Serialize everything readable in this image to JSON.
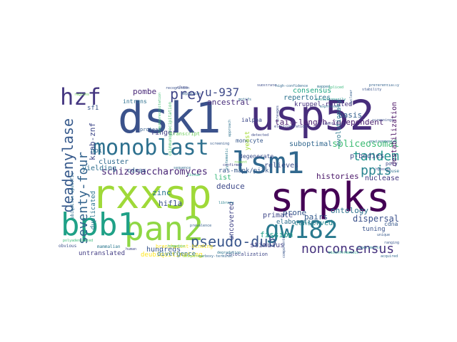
{
  "words": [
    {
      "text": "rxxsp",
      "color": "#9fd938"
    },
    {
      "text": "dsk1",
      "color": "#3b528b"
    },
    {
      "text": "usp52",
      "color": "#472d7b"
    },
    {
      "text": "srpks",
      "color": "#440154"
    },
    {
      "text": "pan2",
      "color": "#8fd744"
    },
    {
      "text": "bpb1",
      "color": "#1fa187"
    },
    {
      "text": "lsm1",
      "color": "#31688e"
    },
    {
      "text": "gw182",
      "color": "#29798e"
    },
    {
      "text": "hzf",
      "color": "#453781"
    },
    {
      "text": "monoblast",
      "color": "#2d708e"
    },
    {
      "text": "pseudo-dub",
      "color": "#39568c"
    },
    {
      "text": "nonconsensus",
      "color": "#46327e"
    },
    {
      "text": "deadenylase",
      "color": "#375a8c"
    },
    {
      "text": "seventy-four",
      "color": "#33638d"
    },
    {
      "text": "prey",
      "color": "#404688"
    },
    {
      "text": "u-937",
      "color": "#3e4a89"
    },
    {
      "text": "tandem",
      "color": "#20928c"
    },
    {
      "text": "ppis",
      "color": "#26828e"
    },
    {
      "text": "schizosaccharomyces",
      "color": "#482475"
    },
    {
      "text": "spliceosomal",
      "color": "#3dbc74"
    },
    {
      "text": "tail-length-independent",
      "color": "#481b6d"
    },
    {
      "text": "krab-znf",
      "color": "#3f4889"
    },
    {
      "text": "pombe",
      "color": "#482878"
    },
    {
      "text": "ancestral",
      "color": "#472c7a"
    },
    {
      "text": "consensus",
      "color": "#22a785"
    },
    {
      "text": "repertoires",
      "color": "#2c728e"
    },
    {
      "text": "kruppel-related",
      "color": "#46307e"
    },
    {
      "text": "basis",
      "color": "#34608d"
    },
    {
      "text": "destabilization",
      "color": "#470e61"
    },
    {
      "text": "evolutionary",
      "color": "#2a768e"
    },
    {
      "text": "p-bodies",
      "color": "#3e4c8a"
    },
    {
      "text": "nuclease",
      "color": "#453882"
    },
    {
      "text": "ontology",
      "color": "#2d718e"
    },
    {
      "text": "dispersal",
      "color": "#3b518b"
    },
    {
      "text": "tuning",
      "color": "#3a538b"
    },
    {
      "text": "conserved",
      "color": "#23898e"
    },
    {
      "text": "fission",
      "color": "#1f9e89"
    },
    {
      "text": "stimulus",
      "color": "#424086"
    },
    {
      "text": "primate",
      "color": "#3f4788"
    },
    {
      "text": "prone",
      "color": "#38588c"
    },
    {
      "text": "pairs",
      "color": "#365c8d"
    },
    {
      "text": "histories",
      "color": "#481467"
    },
    {
      "text": "relieves",
      "color": "#3c4f8a"
    },
    {
      "text": "deduce",
      "color": "#3e4989"
    },
    {
      "text": "list",
      "color": "#35b779"
    },
    {
      "text": "uncovered",
      "color": "#414487"
    },
    {
      "text": "zinc",
      "color": "#2a788e"
    },
    {
      "text": "hif1a",
      "color": "#3b528b"
    },
    {
      "text": "hundreds",
      "color": "#39558c"
    },
    {
      "text": "deubiquitinating",
      "color": "#fde725"
    },
    {
      "text": "divergence",
      "color": "#2c738e"
    },
    {
      "text": "untranslated",
      "color": "#433d84"
    },
    {
      "text": "elaboration",
      "color": "#2e6f8e"
    },
    {
      "text": "suboptimal",
      "color": "#31678e"
    },
    {
      "text": "ras-mapk/pi3k",
      "color": "#38598c"
    },
    {
      "text": "cdnas",
      "color": "#34618d"
    },
    {
      "text": "yielding",
      "color": "#2e6e8e"
    },
    {
      "text": "cluster",
      "color": "#306a8e"
    },
    {
      "text": "duplicated",
      "color": "#2b758e"
    },
    {
      "text": "ppi",
      "color": "#2f6c8e"
    },
    {
      "text": "finger",
      "color": "#423f85"
    },
    {
      "text": "degenerate",
      "color": "#3c4f8a"
    },
    {
      "text": "monocyte",
      "color": "#38598c"
    },
    {
      "text": "ialpha",
      "color": "#3e4a89"
    },
    {
      "text": "sf1",
      "color": "#39568c"
    },
    {
      "text": "introns",
      "color": "#2d708e"
    },
    {
      "text": "transcript",
      "color": "#6ccd5a"
    },
    {
      "text": "yeast",
      "color": "#a5db36"
    },
    {
      "text": "cdna",
      "color": "#37598c"
    },
    {
      "text": "poly",
      "color": "#3e4b8a"
    },
    {
      "text": "mouse",
      "color": "#2c718e"
    },
    {
      "text": "colocalization",
      "color": "#3f4889"
    },
    {
      "text": "stability",
      "color": "#3a548c"
    },
    {
      "text": "screenings",
      "color": "#3b528b"
    },
    {
      "text": "systematic",
      "color": "#297a8e"
    },
    {
      "text": "immunoprecipitation",
      "color": "#40bd72"
    },
    {
      "text": "branchpoint-binding",
      "color": "#fde725"
    },
    {
      "text": "ubiquitin-specific",
      "color": "#2e6e8e"
    },
    {
      "text": "coimmunoprecipitation",
      "color": "#4ac16d"
    },
    {
      "text": "screening",
      "color": "#375b8d"
    },
    {
      "text": "electroporation",
      "color": "#3f4889"
    },
    {
      "text": "rodent",
      "color": "#7ad151"
    },
    {
      "text": "sequence",
      "color": "#2f6b8e"
    },
    {
      "text": "substrate",
      "color": "#3d4e8a"
    },
    {
      "text": "high-confidence",
      "color": "#31688e"
    },
    {
      "text": "preferentially",
      "color": "#33628d"
    },
    {
      "text": "protease",
      "color": "#365d8d"
    },
    {
      "text": "homeobox",
      "color": "#4ac16d"
    },
    {
      "text": "library",
      "color": "#26828e"
    },
    {
      "text": "environmental",
      "color": "#2f6c8e"
    },
    {
      "text": "polyadenylated",
      "color": "#3aba76"
    },
    {
      "text": "confirmed",
      "color": "#414487"
    },
    {
      "text": "prevalence",
      "color": "#35608d"
    },
    {
      "text": "degradation",
      "color": "#2b748e"
    },
    {
      "text": "bioinformatics",
      "color": "#22a884"
    },
    {
      "text": "obvious",
      "color": "#3b518b"
    },
    {
      "text": "components",
      "color": "#39568c"
    },
    {
      "text": "detected",
      "color": "#3e4c8a"
    },
    {
      "text": "motifs",
      "color": "#2f6b8e"
    },
    {
      "text": "evolutionarily",
      "color": "#1f958b"
    },
    {
      "text": "carboxy-terminal",
      "color": "#31668e"
    },
    {
      "text": "ubiquitous",
      "color": "#7ad151"
    },
    {
      "text": "experiments",
      "color": "#287c8e"
    },
    {
      "text": "hypoxia",
      "color": "#3b528b"
    },
    {
      "text": "nuclear",
      "color": "#35608d"
    },
    {
      "text": "identified",
      "color": "#424186"
    },
    {
      "text": "mammalian",
      "color": "#2a778e"
    },
    {
      "text": "human",
      "color": "#3f4788"
    },
    {
      "text": "recognition",
      "color": "#3b528b"
    },
    {
      "text": "lineages",
      "color": "#3d4d8a"
    },
    {
      "text": "unique",
      "color": "#37598c"
    },
    {
      "text": "expressed",
      "color": "#2e6e8e"
    },
    {
      "text": "depletion",
      "color": "#34608d"
    },
    {
      "text": "regions",
      "color": "#6ccd5a"
    },
    {
      "text": "approach",
      "color": "#2d708e"
    },
    {
      "text": "mapped",
      "color": "#2c728e"
    },
    {
      "text": "clues",
      "color": "#3e4a89"
    },
    {
      "text": "tissue",
      "color": "#23a983"
    },
    {
      "text": "acquired",
      "color": "#31688e"
    },
    {
      "text": "ranging",
      "color": "#39568c"
    },
    {
      "text": "spliced",
      "color": "#35b779"
    }
  ]
}
